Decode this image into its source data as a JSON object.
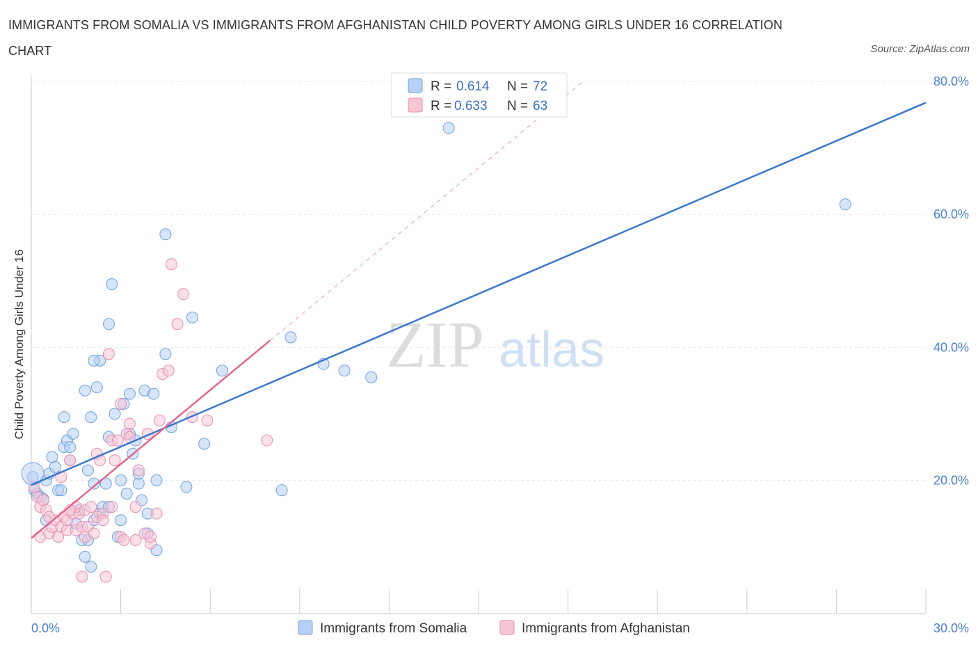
{
  "title": "IMMIGRANTS FROM SOMALIA VS IMMIGRANTS FROM AFGHANISTAN CHILD POVERTY AMONG GIRLS UNDER 16 CORRELATION CHART",
  "source": "Source: ZipAtlas.com",
  "watermark": {
    "zip": "ZIP",
    "atlas": "atlas"
  },
  "chart_data": {
    "type": "scatter",
    "title": "IMMIGRANTS FROM SOMALIA VS IMMIGRANTS FROM AFGHANISTAN CHILD POVERTY AMONG GIRLS UNDER 16 CORRELATION CHART",
    "ylabel": "Child Poverty Among Girls Under 16",
    "xlabel": "",
    "xlim": [
      0,
      30
    ],
    "ylim": [
      0,
      80
    ],
    "x_tick_labels": [
      {
        "value": 0,
        "label": "0.0%"
      },
      {
        "value": 30,
        "label": "30.0%"
      }
    ],
    "y_tick_labels": [
      {
        "value": 20,
        "label": "20.0%"
      },
      {
        "value": 40,
        "label": "40.0%"
      },
      {
        "value": 60,
        "label": "60.0%"
      },
      {
        "value": 80,
        "label": "80.0%"
      }
    ],
    "legend_stats": [
      {
        "r_label": "R =",
        "r_value": "0.614",
        "n_label": "N =",
        "n_value": "72"
      },
      {
        "r_label": "R =",
        "r_value": "0.633",
        "n_label": "N =",
        "n_value": "63"
      }
    ],
    "series": [
      {
        "name": "Immigrants from Somalia",
        "color": "#6f9fe0",
        "fill": "#b7d0f3",
        "line_color": "#3a78cf",
        "trend": {
          "x": [
            0,
            30
          ],
          "y": [
            19.3,
            76.8
          ]
        },
        "points": [
          [
            0.05,
            20.5
          ],
          [
            0.1,
            18.5
          ],
          [
            0.2,
            18.0
          ],
          [
            0.3,
            17.5
          ],
          [
            0.4,
            17.2
          ],
          [
            0.5,
            20.0
          ],
          [
            0.6,
            21.0
          ],
          [
            0.5,
            14.0
          ],
          [
            0.8,
            22.0
          ],
          [
            0.7,
            23.5
          ],
          [
            0.9,
            18.5
          ],
          [
            1.0,
            18.5
          ],
          [
            1.1,
            25.0
          ],
          [
            1.1,
            29.5
          ],
          [
            1.2,
            26.0
          ],
          [
            1.3,
            23.0
          ],
          [
            1.3,
            25.0
          ],
          [
            1.4,
            27.0
          ],
          [
            1.5,
            13.5
          ],
          [
            1.6,
            15.5
          ],
          [
            1.7,
            11.0
          ],
          [
            1.8,
            33.5
          ],
          [
            1.8,
            8.5
          ],
          [
            1.9,
            11.0
          ],
          [
            1.9,
            21.5
          ],
          [
            2.0,
            7.0
          ],
          [
            2.0,
            29.5
          ],
          [
            2.1,
            19.5
          ],
          [
            2.1,
            14.0
          ],
          [
            2.2,
            34.0
          ],
          [
            2.3,
            15.0
          ],
          [
            2.3,
            38.0
          ],
          [
            2.4,
            16.0
          ],
          [
            2.5,
            19.5
          ],
          [
            2.6,
            16.0
          ],
          [
            2.6,
            43.5
          ],
          [
            2.6,
            26.5
          ],
          [
            2.7,
            49.5
          ],
          [
            2.8,
            30.0
          ],
          [
            2.9,
            11.5
          ],
          [
            3.0,
            14.0
          ],
          [
            3.0,
            20.0
          ],
          [
            3.1,
            31.5
          ],
          [
            3.2,
            18.0
          ],
          [
            3.3,
            33.0
          ],
          [
            3.3,
            27.0
          ],
          [
            3.4,
            24.0
          ],
          [
            3.5,
            26.0
          ],
          [
            3.6,
            19.5
          ],
          [
            3.6,
            21.0
          ],
          [
            3.7,
            17.0
          ],
          [
            3.8,
            33.5
          ],
          [
            3.9,
            15.0
          ],
          [
            3.9,
            12.0
          ],
          [
            4.1,
            33.0
          ],
          [
            4.2,
            20.0
          ],
          [
            4.2,
            9.5
          ],
          [
            4.5,
            57.0
          ],
          [
            4.5,
            39.0
          ],
          [
            4.7,
            28.0
          ],
          [
            5.2,
            19.0
          ],
          [
            5.4,
            44.5
          ],
          [
            5.8,
            25.5
          ],
          [
            6.4,
            36.5
          ],
          [
            8.4,
            18.5
          ],
          [
            8.7,
            41.5
          ],
          [
            9.8,
            37.5
          ],
          [
            10.5,
            36.5
          ],
          [
            11.4,
            35.5
          ],
          [
            14.0,
            73.0
          ],
          [
            27.3,
            61.5
          ],
          [
            2.1,
            38.0
          ]
        ]
      },
      {
        "name": "Immigrants from Afghanistan",
        "color": "#e78fac",
        "fill": "#f6c6d5",
        "line_color": "#e0668f",
        "trend": {
          "x": [
            0,
            8
          ],
          "y": [
            11.3,
            41.0
          ]
        },
        "trend_ext": {
          "x": [
            8,
            18.5
          ],
          "y": [
            41.0,
            80.0
          ]
        },
        "points": [
          [
            0.1,
            19.0
          ],
          [
            0.2,
            17.5
          ],
          [
            0.3,
            16.0
          ],
          [
            0.3,
            11.5
          ],
          [
            0.4,
            17.0
          ],
          [
            0.5,
            15.5
          ],
          [
            0.6,
            12.0
          ],
          [
            0.7,
            13.0
          ],
          [
            0.8,
            14.0
          ],
          [
            0.9,
            11.5
          ],
          [
            1.0,
            13.0
          ],
          [
            1.0,
            20.5
          ],
          [
            1.1,
            14.5
          ],
          [
            1.2,
            12.5
          ],
          [
            1.2,
            14.0
          ],
          [
            1.3,
            23.0
          ],
          [
            1.4,
            15.0
          ],
          [
            1.5,
            12.5
          ],
          [
            1.5,
            16.0
          ],
          [
            1.6,
            15.0
          ],
          [
            1.7,
            13.0
          ],
          [
            1.7,
            5.5
          ],
          [
            1.8,
            11.5
          ],
          [
            1.8,
            15.5
          ],
          [
            1.9,
            13.0
          ],
          [
            2.0,
            16.0
          ],
          [
            2.1,
            12.0
          ],
          [
            2.2,
            14.5
          ],
          [
            2.2,
            24.0
          ],
          [
            2.3,
            23.0
          ],
          [
            2.4,
            15.0
          ],
          [
            2.4,
            14.0
          ],
          [
            2.5,
            5.5
          ],
          [
            2.6,
            39.0
          ],
          [
            2.7,
            26.0
          ],
          [
            2.7,
            16.0
          ],
          [
            2.8,
            23.0
          ],
          [
            2.9,
            26.0
          ],
          [
            3.0,
            31.5
          ],
          [
            3.0,
            11.5
          ],
          [
            3.1,
            11.0
          ],
          [
            3.2,
            27.0
          ],
          [
            3.3,
            26.5
          ],
          [
            3.3,
            28.5
          ],
          [
            3.5,
            16.0
          ],
          [
            3.5,
            11.0
          ],
          [
            3.6,
            21.5
          ],
          [
            3.8,
            12.0
          ],
          [
            3.9,
            27.0
          ],
          [
            4.0,
            10.5
          ],
          [
            4.2,
            15.0
          ],
          [
            4.3,
            29.0
          ],
          [
            4.4,
            36.0
          ],
          [
            4.6,
            36.5
          ],
          [
            4.7,
            52.5
          ],
          [
            4.9,
            43.5
          ],
          [
            5.1,
            48.0
          ],
          [
            5.4,
            29.5
          ],
          [
            5.9,
            29.0
          ],
          [
            7.9,
            26.0
          ],
          [
            4.0,
            11.5
          ],
          [
            1.3,
            15.5
          ],
          [
            0.6,
            14.5
          ]
        ]
      }
    ]
  }
}
